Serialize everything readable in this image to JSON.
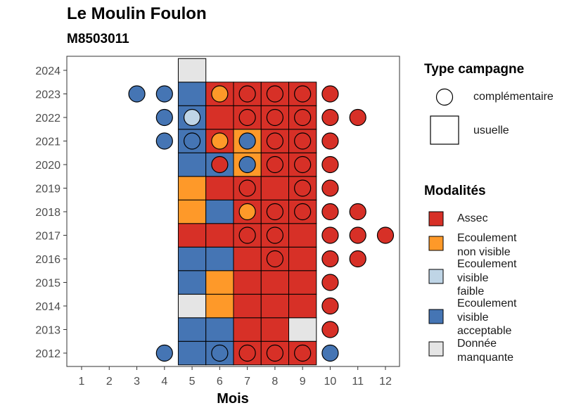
{
  "colors": {
    "Assec": "#d73027",
    "Ecoulement non visible": "#fe9929",
    "Ecoulement visible faible": "#bfd5e6",
    "Ecoulement visible acceptable": "#4575b4",
    "Donnée manquante": "#e5e5e5"
  },
  "chart_data": {
    "type": "heatmap",
    "title": "Le Moulin Foulon",
    "subtitle": "M8503011",
    "xlabel": "Mois",
    "ylabel": "",
    "x_ticks": [
      "1",
      "2",
      "3",
      "4",
      "5",
      "6",
      "7",
      "8",
      "9",
      "10",
      "11",
      "12"
    ],
    "y_ticks": [
      "2012",
      "2013",
      "2014",
      "2015",
      "2016",
      "2017",
      "2018",
      "2019",
      "2020",
      "2021",
      "2022",
      "2023",
      "2024"
    ],
    "xlim": [
      0.5,
      12.5
    ],
    "ylim": [
      2011.4,
      2024.6
    ],
    "grid": false,
    "legend_position": "right",
    "legend_shape_title": "Type campagne",
    "legend_shapes": [
      {
        "key": "complementaire",
        "label": "complémentaire",
        "shape": "circle"
      },
      {
        "key": "usuelle",
        "label": "usuelle",
        "shape": "square"
      }
    ],
    "legend_modalities_title": "Modalités",
    "legend_modalities": [
      {
        "key": "Assec",
        "lines": [
          "Assec"
        ]
      },
      {
        "key": "Ecoulement non visible",
        "lines": [
          "Ecoulement",
          "non visible"
        ]
      },
      {
        "key": "Ecoulement visible faible",
        "lines": [
          "Ecoulement",
          "visible",
          "faible"
        ]
      },
      {
        "key": "Ecoulement visible acceptable",
        "lines": [
          "Ecoulement",
          "visible",
          "acceptable"
        ]
      },
      {
        "key": "Donnée manquante",
        "lines": [
          "Donnée",
          "manquante"
        ]
      }
    ],
    "usuelle": [
      {
        "year": 2012,
        "month": 5,
        "v": "Ecoulement visible acceptable"
      },
      {
        "year": 2012,
        "month": 6,
        "v": "Ecoulement visible acceptable"
      },
      {
        "year": 2012,
        "month": 7,
        "v": "Assec"
      },
      {
        "year": 2012,
        "month": 8,
        "v": "Assec"
      },
      {
        "year": 2012,
        "month": 9,
        "v": "Assec"
      },
      {
        "year": 2013,
        "month": 5,
        "v": "Ecoulement visible acceptable"
      },
      {
        "year": 2013,
        "month": 6,
        "v": "Ecoulement visible acceptable"
      },
      {
        "year": 2013,
        "month": 7,
        "v": "Assec"
      },
      {
        "year": 2013,
        "month": 8,
        "v": "Assec"
      },
      {
        "year": 2013,
        "month": 9,
        "v": "Donnée manquante"
      },
      {
        "year": 2014,
        "month": 5,
        "v": "Donnée manquante"
      },
      {
        "year": 2014,
        "month": 6,
        "v": "Ecoulement non visible"
      },
      {
        "year": 2014,
        "month": 7,
        "v": "Assec"
      },
      {
        "year": 2014,
        "month": 8,
        "v": "Assec"
      },
      {
        "year": 2014,
        "month": 9,
        "v": "Assec"
      },
      {
        "year": 2015,
        "month": 5,
        "v": "Ecoulement visible acceptable"
      },
      {
        "year": 2015,
        "month": 6,
        "v": "Ecoulement non visible"
      },
      {
        "year": 2015,
        "month": 7,
        "v": "Assec"
      },
      {
        "year": 2015,
        "month": 8,
        "v": "Assec"
      },
      {
        "year": 2015,
        "month": 9,
        "v": "Assec"
      },
      {
        "year": 2016,
        "month": 5,
        "v": "Ecoulement visible acceptable"
      },
      {
        "year": 2016,
        "month": 6,
        "v": "Ecoulement visible acceptable"
      },
      {
        "year": 2016,
        "month": 7,
        "v": "Assec"
      },
      {
        "year": 2016,
        "month": 8,
        "v": "Assec"
      },
      {
        "year": 2016,
        "month": 9,
        "v": "Assec"
      },
      {
        "year": 2017,
        "month": 5,
        "v": "Assec"
      },
      {
        "year": 2017,
        "month": 6,
        "v": "Assec"
      },
      {
        "year": 2017,
        "month": 7,
        "v": "Assec"
      },
      {
        "year": 2017,
        "month": 8,
        "v": "Assec"
      },
      {
        "year": 2017,
        "month": 9,
        "v": "Assec"
      },
      {
        "year": 2018,
        "month": 5,
        "v": "Ecoulement non visible"
      },
      {
        "year": 2018,
        "month": 6,
        "v": "Ecoulement visible acceptable"
      },
      {
        "year": 2018,
        "month": 7,
        "v": "Assec"
      },
      {
        "year": 2018,
        "month": 8,
        "v": "Assec"
      },
      {
        "year": 2018,
        "month": 9,
        "v": "Assec"
      },
      {
        "year": 2019,
        "month": 5,
        "v": "Ecoulement non visible"
      },
      {
        "year": 2019,
        "month": 6,
        "v": "Assec"
      },
      {
        "year": 2019,
        "month": 7,
        "v": "Assec"
      },
      {
        "year": 2019,
        "month": 8,
        "v": "Assec"
      },
      {
        "year": 2019,
        "month": 9,
        "v": "Assec"
      },
      {
        "year": 2020,
        "month": 5,
        "v": "Ecoulement visible acceptable"
      },
      {
        "year": 2020,
        "month": 6,
        "v": "Ecoulement visible acceptable"
      },
      {
        "year": 2020,
        "month": 7,
        "v": "Ecoulement non visible"
      },
      {
        "year": 2020,
        "month": 8,
        "v": "Assec"
      },
      {
        "year": 2020,
        "month": 9,
        "v": "Assec"
      },
      {
        "year": 2021,
        "month": 5,
        "v": "Ecoulement visible acceptable"
      },
      {
        "year": 2021,
        "month": 6,
        "v": "Assec"
      },
      {
        "year": 2021,
        "month": 7,
        "v": "Ecoulement non visible"
      },
      {
        "year": 2021,
        "month": 8,
        "v": "Assec"
      },
      {
        "year": 2021,
        "month": 9,
        "v": "Assec"
      },
      {
        "year": 2022,
        "month": 5,
        "v": "Ecoulement visible acceptable"
      },
      {
        "year": 2022,
        "month": 6,
        "v": "Assec"
      },
      {
        "year": 2022,
        "month": 7,
        "v": "Assec"
      },
      {
        "year": 2022,
        "month": 8,
        "v": "Assec"
      },
      {
        "year": 2022,
        "month": 9,
        "v": "Assec"
      },
      {
        "year": 2023,
        "month": 5,
        "v": "Ecoulement visible acceptable"
      },
      {
        "year": 2023,
        "month": 6,
        "v": "Assec"
      },
      {
        "year": 2023,
        "month": 7,
        "v": "Assec"
      },
      {
        "year": 2023,
        "month": 8,
        "v": "Assec"
      },
      {
        "year": 2023,
        "month": 9,
        "v": "Assec"
      },
      {
        "year": 2024,
        "month": 5,
        "v": "Donnée manquante"
      }
    ],
    "complementaire": [
      {
        "year": 2012,
        "month": 4,
        "v": "Ecoulement visible acceptable"
      },
      {
        "year": 2012,
        "month": 6,
        "v": "Ecoulement visible acceptable"
      },
      {
        "year": 2012,
        "month": 7,
        "v": "Assec"
      },
      {
        "year": 2012,
        "month": 8,
        "v": "Assec"
      },
      {
        "year": 2012,
        "month": 9,
        "v": "Assec"
      },
      {
        "year": 2012,
        "month": 10,
        "v": "Ecoulement visible acceptable"
      },
      {
        "year": 2013,
        "month": 10,
        "v": "Assec"
      },
      {
        "year": 2014,
        "month": 10,
        "v": "Assec"
      },
      {
        "year": 2015,
        "month": 10,
        "v": "Assec"
      },
      {
        "year": 2016,
        "month": 8,
        "v": "Assec"
      },
      {
        "year": 2016,
        "month": 10,
        "v": "Assec"
      },
      {
        "year": 2016,
        "month": 11,
        "v": "Assec"
      },
      {
        "year": 2017,
        "month": 7,
        "v": "Assec"
      },
      {
        "year": 2017,
        "month": 8,
        "v": "Assec"
      },
      {
        "year": 2017,
        "month": 10,
        "v": "Assec"
      },
      {
        "year": 2017,
        "month": 11,
        "v": "Assec"
      },
      {
        "year": 2017,
        "month": 12,
        "v": "Assec"
      },
      {
        "year": 2018,
        "month": 7,
        "v": "Ecoulement non visible"
      },
      {
        "year": 2018,
        "month": 8,
        "v": "Assec"
      },
      {
        "year": 2018,
        "month": 9,
        "v": "Assec"
      },
      {
        "year": 2018,
        "month": 10,
        "v": "Assec"
      },
      {
        "year": 2018,
        "month": 11,
        "v": "Assec"
      },
      {
        "year": 2019,
        "month": 7,
        "v": "Assec"
      },
      {
        "year": 2019,
        "month": 9,
        "v": "Assec"
      },
      {
        "year": 2019,
        "month": 10,
        "v": "Assec"
      },
      {
        "year": 2020,
        "month": 6,
        "v": "Assec"
      },
      {
        "year": 2020,
        "month": 7,
        "v": "Ecoulement visible acceptable"
      },
      {
        "year": 2020,
        "month": 8,
        "v": "Assec"
      },
      {
        "year": 2020,
        "month": 9,
        "v": "Assec"
      },
      {
        "year": 2020,
        "month": 10,
        "v": "Assec"
      },
      {
        "year": 2021,
        "month": 4,
        "v": "Ecoulement visible acceptable"
      },
      {
        "year": 2021,
        "month": 5,
        "v": "Ecoulement visible acceptable"
      },
      {
        "year": 2021,
        "month": 6,
        "v": "Ecoulement non visible"
      },
      {
        "year": 2021,
        "month": 7,
        "v": "Ecoulement visible acceptable"
      },
      {
        "year": 2021,
        "month": 8,
        "v": "Assec"
      },
      {
        "year": 2021,
        "month": 9,
        "v": "Assec"
      },
      {
        "year": 2021,
        "month": 10,
        "v": "Assec"
      },
      {
        "year": 2022,
        "month": 4,
        "v": "Ecoulement visible acceptable"
      },
      {
        "year": 2022,
        "month": 5,
        "v": "Ecoulement visible faible"
      },
      {
        "year": 2022,
        "month": 7,
        "v": "Assec"
      },
      {
        "year": 2022,
        "month": 8,
        "v": "Assec"
      },
      {
        "year": 2022,
        "month": 9,
        "v": "Assec"
      },
      {
        "year": 2022,
        "month": 10,
        "v": "Assec"
      },
      {
        "year": 2022,
        "month": 11,
        "v": "Assec"
      },
      {
        "year": 2023,
        "month": 3,
        "v": "Ecoulement visible acceptable"
      },
      {
        "year": 2023,
        "month": 4,
        "v": "Ecoulement visible acceptable"
      },
      {
        "year": 2023,
        "month": 6,
        "v": "Ecoulement non visible"
      },
      {
        "year": 2023,
        "month": 7,
        "v": "Assec"
      },
      {
        "year": 2023,
        "month": 8,
        "v": "Assec"
      },
      {
        "year": 2023,
        "month": 9,
        "v": "Assec"
      },
      {
        "year": 2023,
        "month": 10,
        "v": "Assec"
      }
    ]
  }
}
